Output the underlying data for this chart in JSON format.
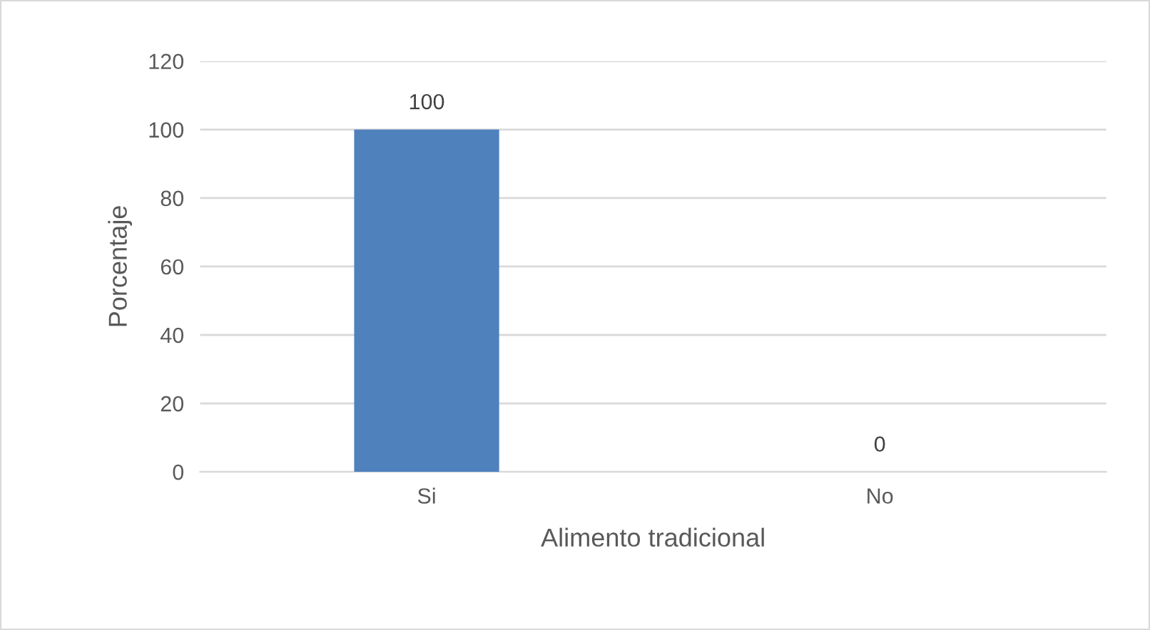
{
  "chart_data": {
    "type": "bar",
    "xlabel": "Alimento tradicional",
    "ylabel": "Porcentaje",
    "categories": [
      "Si",
      "No"
    ],
    "values": [
      100,
      0
    ],
    "color": "#4f81bd",
    "ylim": [
      0,
      120
    ],
    "yticks": [
      0,
      20,
      40,
      60,
      80,
      100,
      120
    ],
    "grid": "y",
    "data_labels": true,
    "legend": false
  }
}
